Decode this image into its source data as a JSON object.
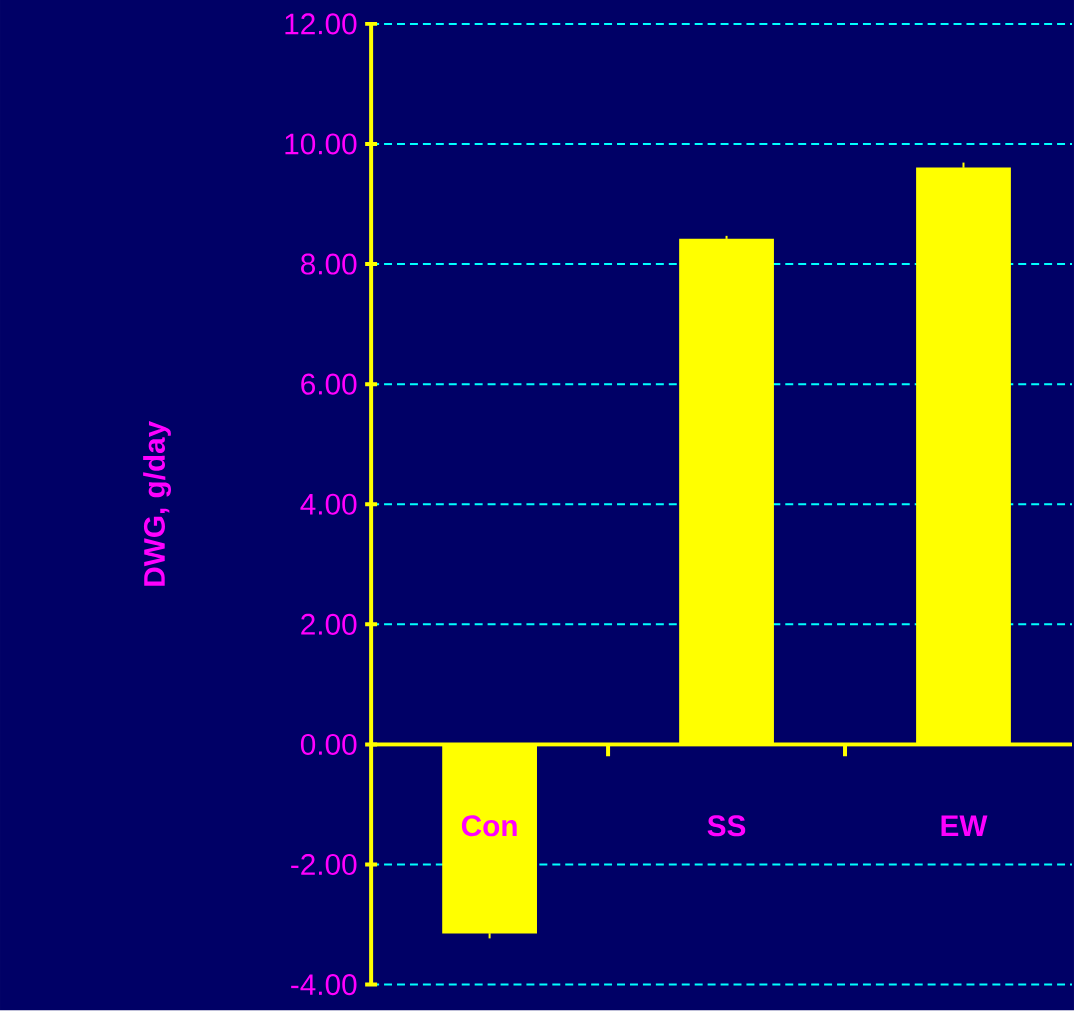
{
  "chart_data": {
    "type": "bar",
    "ylabel": "DWG, g/day",
    "categories": [
      "Con",
      "SS",
      "EW"
    ],
    "values": [
      -3.15,
      8.42,
      9.61
    ],
    "errors": [
      0.08,
      0.05,
      0.08
    ],
    "color": "#ffff00",
    "ylim": [
      -4,
      12
    ],
    "yticks": [
      {
        "value": -4,
        "label": "-4.00"
      },
      {
        "value": -2,
        "label": "-2.00"
      },
      {
        "value": 0,
        "label": "0.00"
      },
      {
        "value": 2,
        "label": "2.00"
      },
      {
        "value": 4,
        "label": "4.00"
      },
      {
        "value": 6,
        "label": "6.00"
      },
      {
        "value": 8,
        "label": "8.00"
      },
      {
        "value": 10,
        "label": "10.00"
      },
      {
        "value": 12,
        "label": "12.00"
      }
    ],
    "grid": "y"
  }
}
